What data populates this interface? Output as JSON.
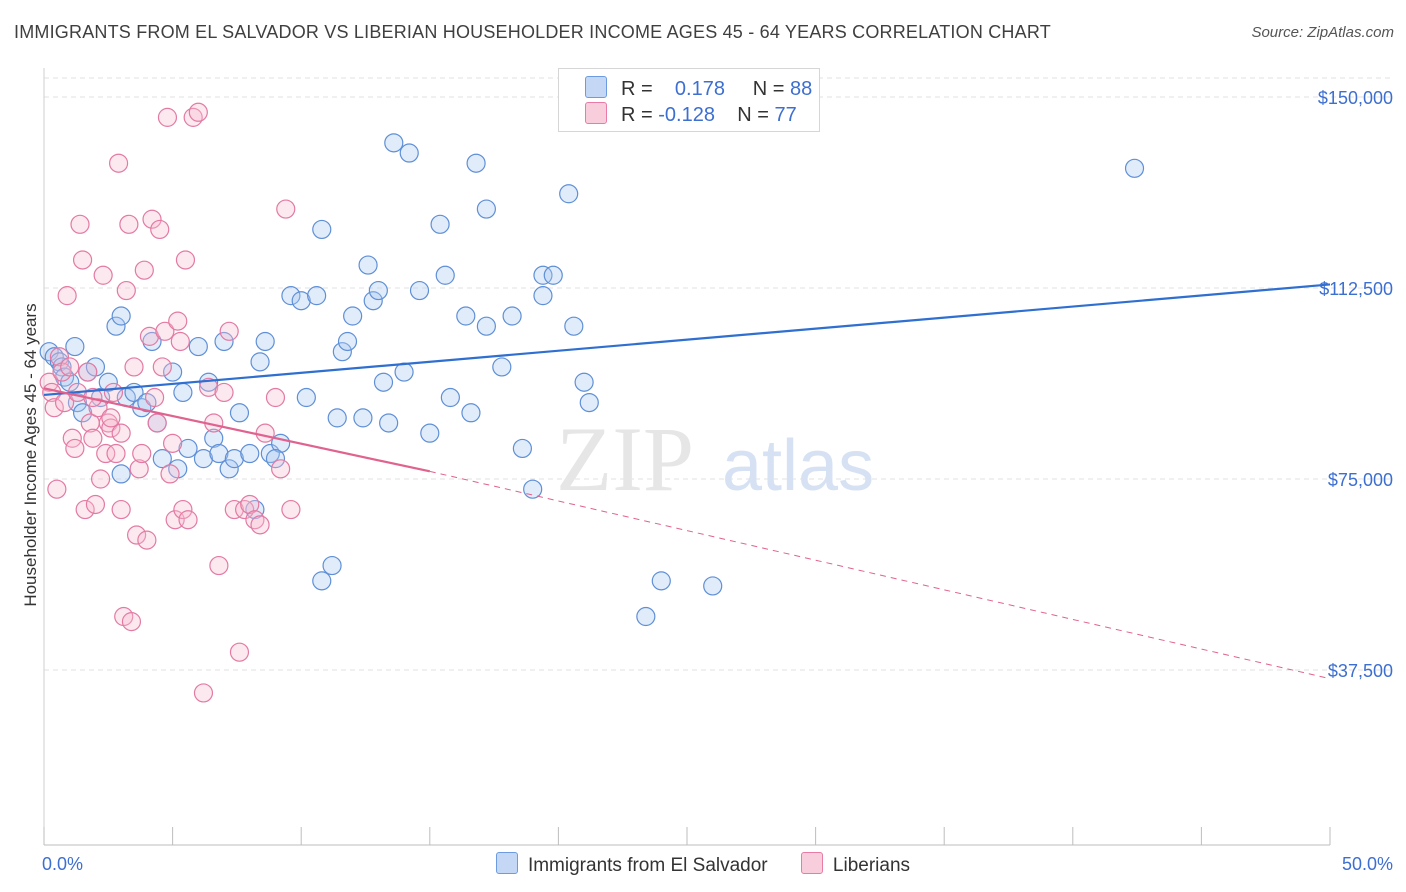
{
  "header": {
    "title": "IMMIGRANTS FROM EL SALVADOR VS LIBERIAN HOUSEHOLDER INCOME AGES 45 - 64 YEARS CORRELATION CHART",
    "source": "Source: ZipAtlas.com"
  },
  "watermark": {
    "zip": "ZIP",
    "atlas": "atlas"
  },
  "legend": {
    "blue": {
      "r_label": "R =",
      "r_value": "0.178",
      "n_label": "N =",
      "n_value": "88"
    },
    "pink": {
      "r_label": "R =",
      "r_value": "-0.128",
      "n_label": "N =",
      "n_value": "77"
    }
  },
  "chart_data": {
    "type": "scatter",
    "title": "IMMIGRANTS FROM EL SALVADOR VS LIBERIAN HOUSEHOLDER INCOME AGES 45 - 64 YEARS CORRELATION CHART",
    "ylabel": "Householder Income Ages 45 - 64 years",
    "xlabel": "",
    "x_tick_labels": [
      "0.0%",
      "50.0%"
    ],
    "y_tick_labels": [
      "$150,000",
      "$112,500",
      "$75,000",
      "$37,500"
    ],
    "y_ticks": [
      150000,
      112500,
      75000,
      37500
    ],
    "xlim": [
      0,
      50
    ],
    "ylim": [
      0,
      155000
    ],
    "grid": true,
    "legend_position": "top-center",
    "colors": {
      "blue": "#6d9be0",
      "pink": "#e87ca6",
      "blue_line": "#2f6fd0",
      "pink_line": "#e0628f"
    },
    "series": [
      {
        "name": "Immigrants from El Salvador",
        "color": "#6d9be0",
        "points": [
          [
            0.2,
            100
          ],
          [
            0.4,
            99
          ],
          [
            0.6,
            98
          ],
          [
            0.7,
            97
          ],
          [
            0.8,
            95
          ],
          [
            1.0,
            94
          ],
          [
            1.2,
            101
          ],
          [
            1.3,
            90
          ],
          [
            1.5,
            88
          ],
          [
            1.7,
            96
          ],
          [
            2.0,
            97
          ],
          [
            2.2,
            91
          ],
          [
            2.5,
            94
          ],
          [
            2.8,
            105
          ],
          [
            3.0,
            107
          ],
          [
            3.0,
            76
          ],
          [
            3.2,
            91
          ],
          [
            3.5,
            92
          ],
          [
            3.8,
            89
          ],
          [
            4.0,
            90
          ],
          [
            4.2,
            102
          ],
          [
            4.4,
            86
          ],
          [
            4.6,
            79
          ],
          [
            5.0,
            96
          ],
          [
            5.2,
            77
          ],
          [
            5.4,
            92
          ],
          [
            5.6,
            81
          ],
          [
            6.0,
            101
          ],
          [
            6.2,
            79
          ],
          [
            6.4,
            94
          ],
          [
            6.6,
            83
          ],
          [
            6.8,
            80
          ],
          [
            7.0,
            102
          ],
          [
            7.2,
            77
          ],
          [
            7.4,
            79
          ],
          [
            7.6,
            88
          ],
          [
            8.0,
            80
          ],
          [
            8.2,
            69
          ],
          [
            8.4,
            98
          ],
          [
            8.6,
            102
          ],
          [
            8.8,
            80
          ],
          [
            9.2,
            82
          ],
          [
            9.0,
            79
          ],
          [
            9.6,
            111
          ],
          [
            10.0,
            110
          ],
          [
            10.2,
            91
          ],
          [
            10.6,
            111
          ],
          [
            10.8,
            124
          ],
          [
            10.8,
            55
          ],
          [
            11.2,
            58
          ],
          [
            11.4,
            87
          ],
          [
            11.6,
            100
          ],
          [
            11.8,
            102
          ],
          [
            12.0,
            107
          ],
          [
            12.4,
            87
          ],
          [
            12.6,
            117
          ],
          [
            12.8,
            110
          ],
          [
            13.0,
            112
          ],
          [
            13.2,
            94
          ],
          [
            13.4,
            86
          ],
          [
            13.6,
            141
          ],
          [
            14.0,
            96
          ],
          [
            14.2,
            139
          ],
          [
            14.6,
            112
          ],
          [
            15.0,
            84
          ],
          [
            15.4,
            125
          ],
          [
            15.6,
            115
          ],
          [
            15.8,
            91
          ],
          [
            16.4,
            107
          ],
          [
            16.6,
            88
          ],
          [
            16.8,
            137
          ],
          [
            17.2,
            105
          ],
          [
            17.2,
            128
          ],
          [
            17.8,
            97
          ],
          [
            18.2,
            107
          ],
          [
            18.6,
            81
          ],
          [
            19.0,
            73
          ],
          [
            19.4,
            115
          ],
          [
            19.4,
            111
          ],
          [
            19.8,
            115
          ],
          [
            20.4,
            131
          ],
          [
            20.6,
            105
          ],
          [
            21.0,
            94
          ],
          [
            21.2,
            90
          ],
          [
            23.4,
            48
          ],
          [
            24.0,
            55
          ],
          [
            26.0,
            54
          ],
          [
            42.4,
            136
          ]
        ]
      },
      {
        "name": "Liberians",
        "color": "#e87ca6",
        "points": [
          [
            0.2,
            94
          ],
          [
            0.3,
            92
          ],
          [
            0.4,
            89
          ],
          [
            0.5,
            73
          ],
          [
            0.6,
            99
          ],
          [
            0.7,
            96
          ],
          [
            0.8,
            90
          ],
          [
            0.9,
            111
          ],
          [
            1.0,
            97
          ],
          [
            1.1,
            83
          ],
          [
            1.2,
            81
          ],
          [
            1.3,
            92
          ],
          [
            1.4,
            125
          ],
          [
            1.5,
            118
          ],
          [
            1.6,
            69
          ],
          [
            1.7,
            96
          ],
          [
            1.8,
            86
          ],
          [
            1.9,
            83
          ],
          [
            2.0,
            70
          ],
          [
            2.1,
            89
          ],
          [
            2.2,
            75
          ],
          [
            2.3,
            115
          ],
          [
            2.4,
            80
          ],
          [
            2.5,
            86
          ],
          [
            2.6,
            85
          ],
          [
            2.7,
            92
          ],
          [
            2.8,
            80
          ],
          [
            2.9,
            137
          ],
          [
            3.0,
            69
          ],
          [
            3.1,
            48
          ],
          [
            3.2,
            112
          ],
          [
            3.3,
            125
          ],
          [
            3.4,
            47
          ],
          [
            3.5,
            97
          ],
          [
            3.6,
            64
          ],
          [
            3.7,
            77
          ],
          [
            3.8,
            80
          ],
          [
            3.9,
            116
          ],
          [
            4.0,
            63
          ],
          [
            4.1,
            103
          ],
          [
            4.2,
            126
          ],
          [
            4.3,
            91
          ],
          [
            4.4,
            86
          ],
          [
            4.5,
            124
          ],
          [
            4.6,
            97
          ],
          [
            4.7,
            104
          ],
          [
            4.8,
            146
          ],
          [
            4.9,
            76
          ],
          [
            5.0,
            82
          ],
          [
            5.1,
            67
          ],
          [
            5.2,
            106
          ],
          [
            5.3,
            102
          ],
          [
            5.4,
            69
          ],
          [
            5.5,
            118
          ],
          [
            5.6,
            67
          ],
          [
            5.8,
            146
          ],
          [
            6.0,
            147
          ],
          [
            6.2,
            33
          ],
          [
            6.4,
            93
          ],
          [
            6.6,
            86
          ],
          [
            6.8,
            58
          ],
          [
            7.0,
            92
          ],
          [
            7.2,
            104
          ],
          [
            7.4,
            69
          ],
          [
            7.6,
            41
          ],
          [
            7.8,
            69
          ],
          [
            8.0,
            70
          ],
          [
            8.2,
            67
          ],
          [
            8.4,
            66
          ],
          [
            8.6,
            84
          ],
          [
            9.0,
            91
          ],
          [
            9.2,
            77
          ],
          [
            9.4,
            128
          ],
          [
            9.6,
            69
          ],
          [
            2.6,
            87
          ],
          [
            1.9,
            91
          ],
          [
            3.0,
            84
          ]
        ]
      }
    ],
    "trend_lines": [
      {
        "series": "Immigrants from El Salvador",
        "x": [
          0.0,
          50.0
        ],
        "y": [
          91500,
          113200
        ]
      },
      {
        "series": "Liberians",
        "x": [
          0.0,
          15.0
        ],
        "y": [
          92800,
          76500
        ]
      },
      {
        "series": "Liberians",
        "x": [
          15.0,
          50.0
        ],
        "y": [
          76500,
          35800
        ],
        "dashed": true
      }
    ]
  },
  "bottom_legend": {
    "blue_label": "Immigrants from El Salvador",
    "pink_label": "Liberians"
  }
}
